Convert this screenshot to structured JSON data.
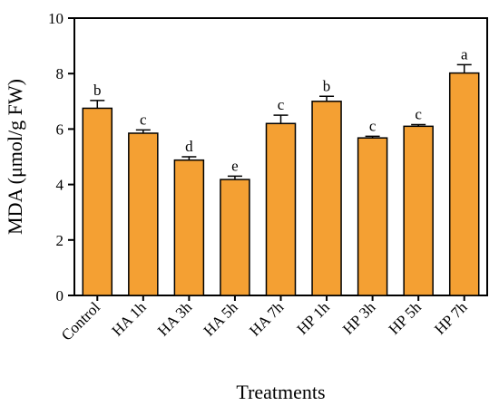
{
  "chart_data": {
    "type": "bar",
    "title": "",
    "xlabel": "Treatments",
    "ylabel": "MDA (μmol/g FW)",
    "categories": [
      "Control",
      "HA 1h",
      "HA 3h",
      "HA 5h",
      "HA 7h",
      "HP 1h",
      "HP 3h",
      "HP 5h",
      "HP 7h"
    ],
    "values": [
      6.75,
      5.85,
      4.88,
      4.18,
      6.2,
      7.0,
      5.68,
      6.1,
      8.02
    ],
    "errors": [
      0.28,
      0.12,
      0.12,
      0.12,
      0.3,
      0.18,
      0.06,
      0.06,
      0.3
    ],
    "significance": [
      "b",
      "c",
      "d",
      "e",
      "c",
      "b",
      "c",
      "c",
      "a"
    ],
    "ylim": [
      0,
      10
    ],
    "yticks": [
      0,
      2,
      4,
      6,
      8,
      10
    ],
    "grid": false,
    "legend": "none",
    "bar_color": "#F4A033",
    "edge_color": "#000000"
  }
}
